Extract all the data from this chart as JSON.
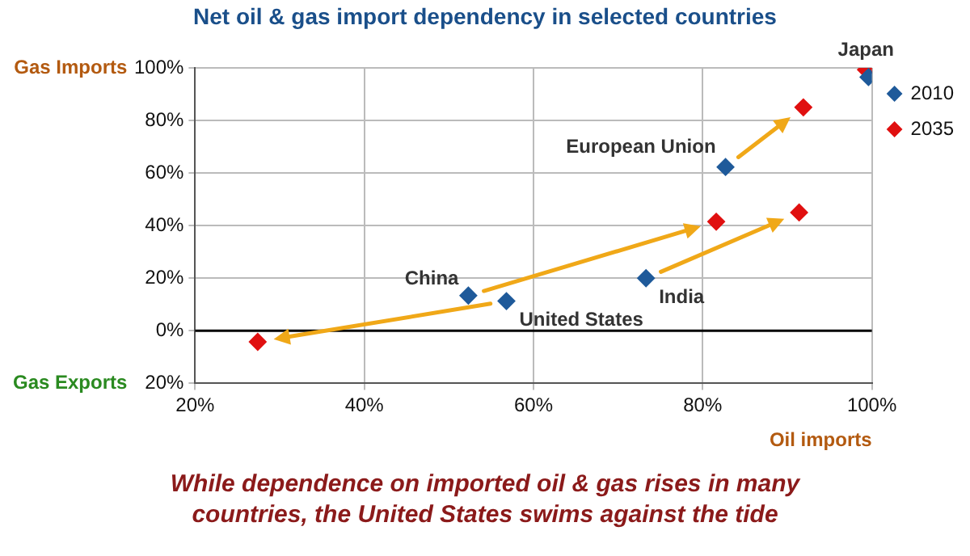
{
  "chart_data": {
    "type": "scatter",
    "title": "Net oil & gas import dependency in selected countries",
    "xlabel": "Oil imports",
    "x": [
      52.3,
      56.8,
      73.3,
      82.7,
      99.6
    ],
    "series": [
      {
        "name": "2010",
        "color": "#1f5a9a",
        "values": [
          13.4,
          11.3,
          20,
          62.3,
          96.5
        ]
      },
      {
        "name": "2035",
        "color": "#e01010",
        "x": [
          81.6,
          27.4,
          91.4,
          91.9,
          99.3
        ],
        "values": [
          41.5,
          -4.2,
          45,
          85,
          99.3
        ]
      }
    ],
    "xlim": [
      20,
      100
    ],
    "xticks": [
      {
        "value": 20,
        "label": "20%"
      },
      {
        "value": 40,
        "label": "40%"
      },
      {
        "value": 60,
        "label": "60%"
      },
      {
        "value": 80,
        "label": "80%"
      },
      {
        "value": 100,
        "label": "100%"
      }
    ],
    "ylim": [
      -20,
      100
    ],
    "yticks": [
      {
        "value": -20,
        "label": "20%"
      },
      {
        "value": 0,
        "label": "0%"
      },
      {
        "value": 20,
        "label": "20%"
      },
      {
        "value": 40,
        "label": "40%"
      },
      {
        "value": 60,
        "label": "60%"
      },
      {
        "value": 80,
        "label": "80%"
      },
      {
        "value": 100,
        "label": "100%"
      }
    ],
    "ref_lines": [
      {
        "axis": "y",
        "value": 0,
        "color": "#000000"
      }
    ],
    "annotations": [
      {
        "text": "China",
        "x": 52.3,
        "y": 13.4
      },
      {
        "text": "United States",
        "x": 56.8,
        "y": 11.3
      },
      {
        "text": "India",
        "x": 73.3,
        "y": 20
      },
      {
        "text": "European Union",
        "x": 82.7,
        "y": 62.3
      },
      {
        "text": "Japan",
        "x": 99.3,
        "y": 99.3
      },
      "Gas Imports",
      "Gas Exports",
      "While dependence on imported oil & gas rises in many countries, the United States swims against the tide"
    ],
    "grid": true,
    "legend": "top right",
    "marker": "diamond"
  }
}
